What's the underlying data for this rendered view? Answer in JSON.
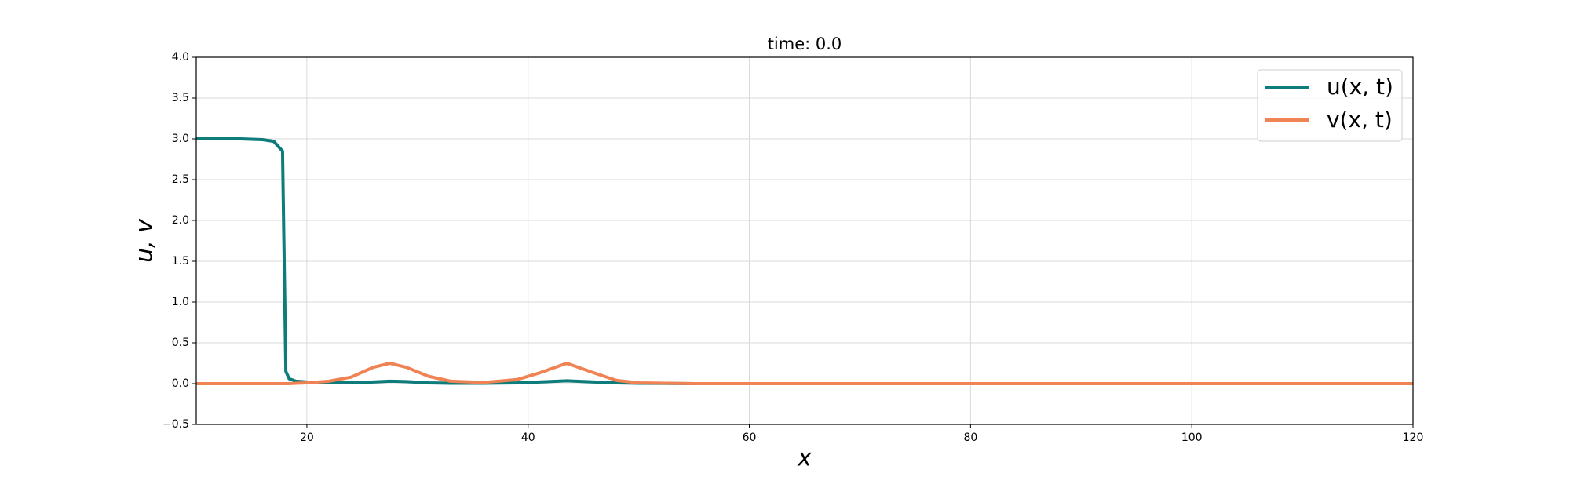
{
  "chart_data": {
    "type": "line",
    "title": "time:  0.0",
    "x_label": "x",
    "y_label": "u, v",
    "x": [
      10,
      12,
      14,
      16,
      17,
      17.8,
      18.1,
      18.4,
      19,
      20,
      22,
      24,
      26,
      27.5,
      29,
      31,
      33,
      36,
      39,
      41,
      43.5,
      46,
      48,
      50,
      55,
      60,
      80,
      100,
      120
    ],
    "series": [
      {
        "name": "u(x, t)",
        "color": "#0e7c7b",
        "values": [
          3.0,
          3.0,
          3.0,
          2.99,
          2.97,
          2.85,
          0.15,
          0.06,
          0.03,
          0.02,
          0.01,
          0.01,
          0.02,
          0.03,
          0.025,
          0.01,
          0.005,
          0.005,
          0.01,
          0.02,
          0.035,
          0.02,
          0.01,
          0.005,
          0,
          0,
          0,
          0,
          0
        ]
      },
      {
        "name": "v(x, t)",
        "color": "#ef8354",
        "values": [
          0,
          0,
          0,
          0,
          0,
          0,
          0,
          0,
          0.005,
          0.01,
          0.03,
          0.08,
          0.2,
          0.25,
          0.2,
          0.09,
          0.03,
          0.015,
          0.05,
          0.13,
          0.25,
          0.13,
          0.04,
          0.01,
          0,
          0,
          0,
          0,
          0
        ]
      }
    ],
    "xlim": [
      10,
      120
    ],
    "xticks": [
      20,
      40,
      60,
      80,
      100,
      120
    ],
    "ylim": [
      -0.5,
      4.0
    ],
    "yticks": [
      {
        "value": -0.5,
        "label": "−0.5"
      },
      {
        "value": 0,
        "label": "0.0"
      },
      0.5,
      {
        "value": 1,
        "label": "1.0"
      },
      1.5,
      {
        "value": 2,
        "label": "2.0"
      },
      2.5,
      {
        "value": 3,
        "label": "3.0"
      },
      3.5,
      {
        "value": 4,
        "label": "4.0"
      }
    ],
    "grid": true,
    "legend": "upper-right"
  }
}
